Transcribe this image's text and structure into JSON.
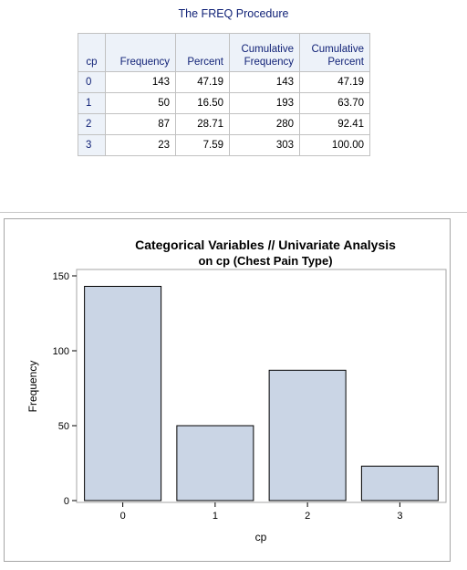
{
  "procedure_title": "The FREQ Procedure",
  "freq_table": {
    "headers": {
      "variable": "cp",
      "frequency": "Frequency",
      "percent": "Percent",
      "cum_frequency_line1": "Cumulative",
      "cum_frequency_line2": "Frequency",
      "cum_percent_line1": "Cumulative",
      "cum_percent_line2": "Percent"
    },
    "rows": [
      {
        "cp": "0",
        "frequency": "143",
        "percent": "47.19",
        "cum_frequency": "143",
        "cum_percent": "47.19"
      },
      {
        "cp": "1",
        "frequency": "50",
        "percent": "16.50",
        "cum_frequency": "193",
        "cum_percent": "63.70"
      },
      {
        "cp": "2",
        "frequency": "87",
        "percent": "28.71",
        "cum_frequency": "280",
        "cum_percent": "92.41"
      },
      {
        "cp": "3",
        "frequency": "23",
        "percent": "7.59",
        "cum_frequency": "303",
        "cum_percent": "100.00"
      }
    ]
  },
  "chart_data": {
    "type": "bar",
    "title": "Categorical Variables // Univariate Analysis",
    "subtitle": "on cp (Chest Pain Type)",
    "xlabel": "cp",
    "ylabel": "Frequency",
    "categories": [
      "0",
      "1",
      "2",
      "3"
    ],
    "values": [
      143,
      50,
      87,
      23
    ],
    "ylim": [
      0,
      160
    ],
    "yticks": [
      0,
      50,
      100,
      150
    ],
    "grid": false,
    "legend": "none",
    "bar_fill": "#cad5e5",
    "bar_edge": "#000000"
  }
}
